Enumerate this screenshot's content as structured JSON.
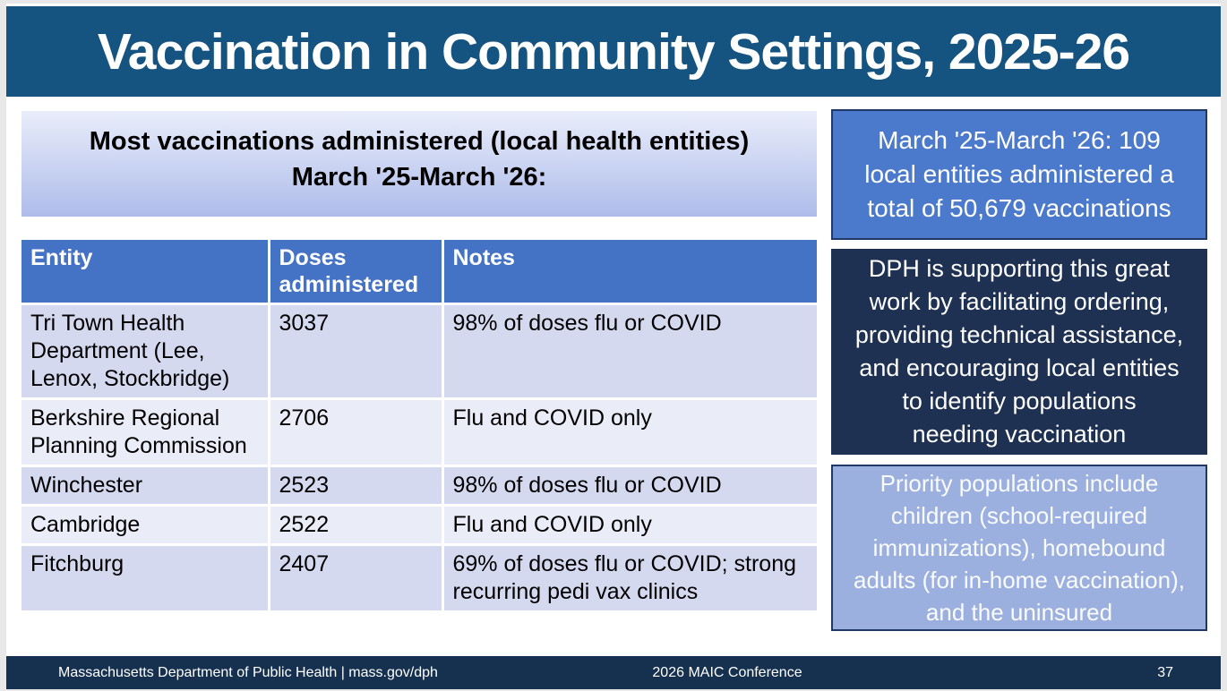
{
  "title": "Vaccination in Community Settings, 2025-26",
  "subtitle_lines": [
    "Most vaccinations administered (local health entities)",
    "March '25-March '26:"
  ],
  "table": {
    "headers": [
      "Entity",
      "Doses administered",
      "Notes"
    ],
    "rows": [
      [
        "Tri Town Health Department (Lee, Lenox, Stockbridge)",
        "3037",
        "98% of doses flu or COVID"
      ],
      [
        "Berkshire Regional Planning Commission",
        "2706",
        "Flu and COVID only"
      ],
      [
        "Winchester",
        "2523",
        "98% of doses flu or COVID"
      ],
      [
        "Cambridge",
        "2522",
        "Flu and COVID only"
      ],
      [
        "Fitchburg",
        "2407",
        "69% of doses flu or COVID; strong recurring pedi vax clinics"
      ]
    ]
  },
  "callouts": {
    "summary": {
      "lines": [
        "March '25-March '26: 109",
        "local entities administered a",
        "total of 50,679 vaccinations"
      ]
    },
    "dph_support": {
      "lines": [
        "DPH is supporting this great",
        "work by facilitating ordering,",
        "providing technical assistance,",
        "and encouraging local entities",
        "to identify populations",
        "needing vaccination"
      ]
    },
    "priority_populations": {
      "lines": [
        "Priority populations include",
        "children (school-required",
        "immunizations), homebound",
        "adults (for in-home vaccination),",
        "and the uninsured"
      ]
    }
  },
  "footer": {
    "left": "Massachusetts Department of Public Health | mass.gov/dph",
    "center": "2026 MAIC Conference",
    "page_number": "37"
  },
  "colors": {
    "title_bar_bg": "#155380",
    "table_header_bg": "#4472C4",
    "summary_box_bg": "#4B79CB",
    "dph_box_bg": "#1E3152",
    "priority_box_bg": "#9BB0DE",
    "box_border": "#1F3864",
    "row_odd_bg": "#D4D9EF",
    "row_even_bg": "#EAECF8",
    "subtitle_gradient_top": "#E9EDFA",
    "subtitle_gradient_bottom": "#AEBCEA",
    "footer_bg": "#16314F",
    "text_on_dark": "#FFFFFF",
    "text_main": "#000000"
  }
}
